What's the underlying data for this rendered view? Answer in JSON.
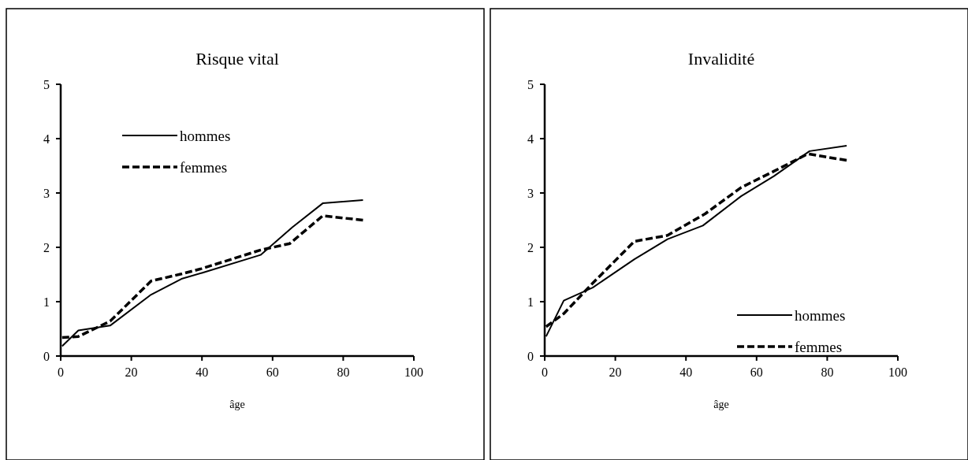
{
  "chart_data": [
    {
      "type": "line",
      "title": "Risque vital",
      "xlabel": "âge",
      "xlim": [
        0,
        100
      ],
      "xticks": [
        0,
        20,
        40,
        60,
        80,
        100
      ],
      "ylim": [
        0,
        5
      ],
      "yticks": [
        0,
        1,
        2,
        3,
        4,
        5
      ],
      "grid": false,
      "legend": "top left",
      "series": [
        {
          "name": "hommes",
          "color": "#000000",
          "line_style": "solid",
          "x": [
            0.4,
            5,
            14,
            25.6,
            34.2,
            40,
            56.6,
            65.6,
            74.2,
            85.6
          ],
          "values": [
            0.18,
            0.47,
            0.56,
            1.13,
            1.42,
            1.53,
            1.86,
            2.37,
            2.81,
            2.87
          ]
        },
        {
          "name": "femmes",
          "color": "#000000",
          "line_style": "dashed",
          "x": [
            0.4,
            5,
            14,
            25.6,
            34.2,
            40,
            56.6,
            64.9,
            74.2,
            85.6
          ],
          "values": [
            0.34,
            0.36,
            0.64,
            1.38,
            1.51,
            1.61,
            1.95,
            2.07,
            2.58,
            2.5
          ]
        }
      ]
    },
    {
      "type": "line",
      "title": "Invalidité",
      "xlabel": "âge",
      "xlim": [
        0,
        100
      ],
      "xticks": [
        0,
        20,
        40,
        60,
        80,
        100
      ],
      "ylim": [
        0,
        5
      ],
      "yticks": [
        0,
        1,
        2,
        3,
        4,
        5
      ],
      "grid": false,
      "legend": "bottom right",
      "series": [
        {
          "name": "hommes",
          "color": "#000000",
          "line_style": "solid",
          "x": [
            0.4,
            5.4,
            13.6,
            25.4,
            34.8,
            44.8,
            55.6,
            64.9,
            75,
            85.5
          ],
          "values": [
            0.36,
            1.02,
            1.26,
            1.78,
            2.15,
            2.4,
            2.94,
            3.31,
            3.77,
            3.87
          ]
        },
        {
          "name": "femmes",
          "color": "#000000",
          "line_style": "dashed",
          "x": [
            0.4,
            5.4,
            13.6,
            25.4,
            34.8,
            45.5,
            55.6,
            64.9,
            74.5,
            85.5
          ],
          "values": [
            0.54,
            0.78,
            1.34,
            2.11,
            2.22,
            2.62,
            3.1,
            3.4,
            3.72,
            3.6
          ]
        }
      ]
    }
  ]
}
